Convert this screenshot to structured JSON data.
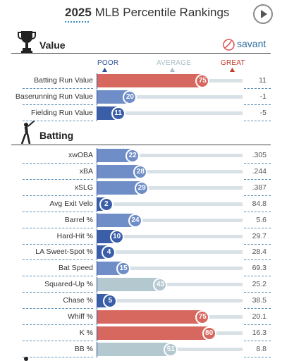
{
  "header": {
    "year": "2025",
    "title": "MLB Percentile Rankings"
  },
  "brand": {
    "name": "savant"
  },
  "scale": {
    "poor": "POOR",
    "average": "AVERAGE",
    "great": "GREAT"
  },
  "colors": {
    "great": "#d7685f",
    "good": "#e59a92",
    "average": "#b3c8cf",
    "below": "#6f8ec7",
    "poor": "#3a5ea8",
    "track": "#d8e2e6"
  },
  "sections": [
    {
      "name": "Value",
      "icon": "trophy-icon",
      "rows": [
        {
          "label": "Batting Run Value",
          "percentile": 75,
          "value": "11"
        },
        {
          "label": "Baserunning Run Value",
          "percentile": 20,
          "value": "-1"
        },
        {
          "label": "Fielding Run Value",
          "percentile": 11,
          "value": "-5"
        }
      ]
    },
    {
      "name": "Batting",
      "icon": "batter-icon",
      "rows": [
        {
          "label": "xwOBA",
          "percentile": 22,
          "value": ".305"
        },
        {
          "label": "xBA",
          "percentile": 28,
          "value": ".244"
        },
        {
          "label": "xSLG",
          "percentile": 29,
          "value": ".387"
        },
        {
          "label": "Avg Exit Velo",
          "percentile": 2,
          "value": "84.8"
        },
        {
          "label": "Barrel %",
          "percentile": 24,
          "value": "5.6"
        },
        {
          "label": "Hard-Hit %",
          "percentile": 10,
          "value": "29.7"
        },
        {
          "label": "LA Sweet-Spot %",
          "percentile": 4,
          "value": "28.4"
        },
        {
          "label": "Bat Speed",
          "percentile": 15,
          "value": "69.3"
        },
        {
          "label": "Squared-Up %",
          "percentile": 43,
          "value": "25.2"
        },
        {
          "label": "Chase %",
          "percentile": 5,
          "value": "38.5"
        },
        {
          "label": "Whiff %",
          "percentile": 75,
          "value": "20.1"
        },
        {
          "label": "K %",
          "percentile": 80,
          "value": "16.3"
        },
        {
          "label": "BB %",
          "percentile": 51,
          "value": "8.8"
        }
      ]
    }
  ]
}
